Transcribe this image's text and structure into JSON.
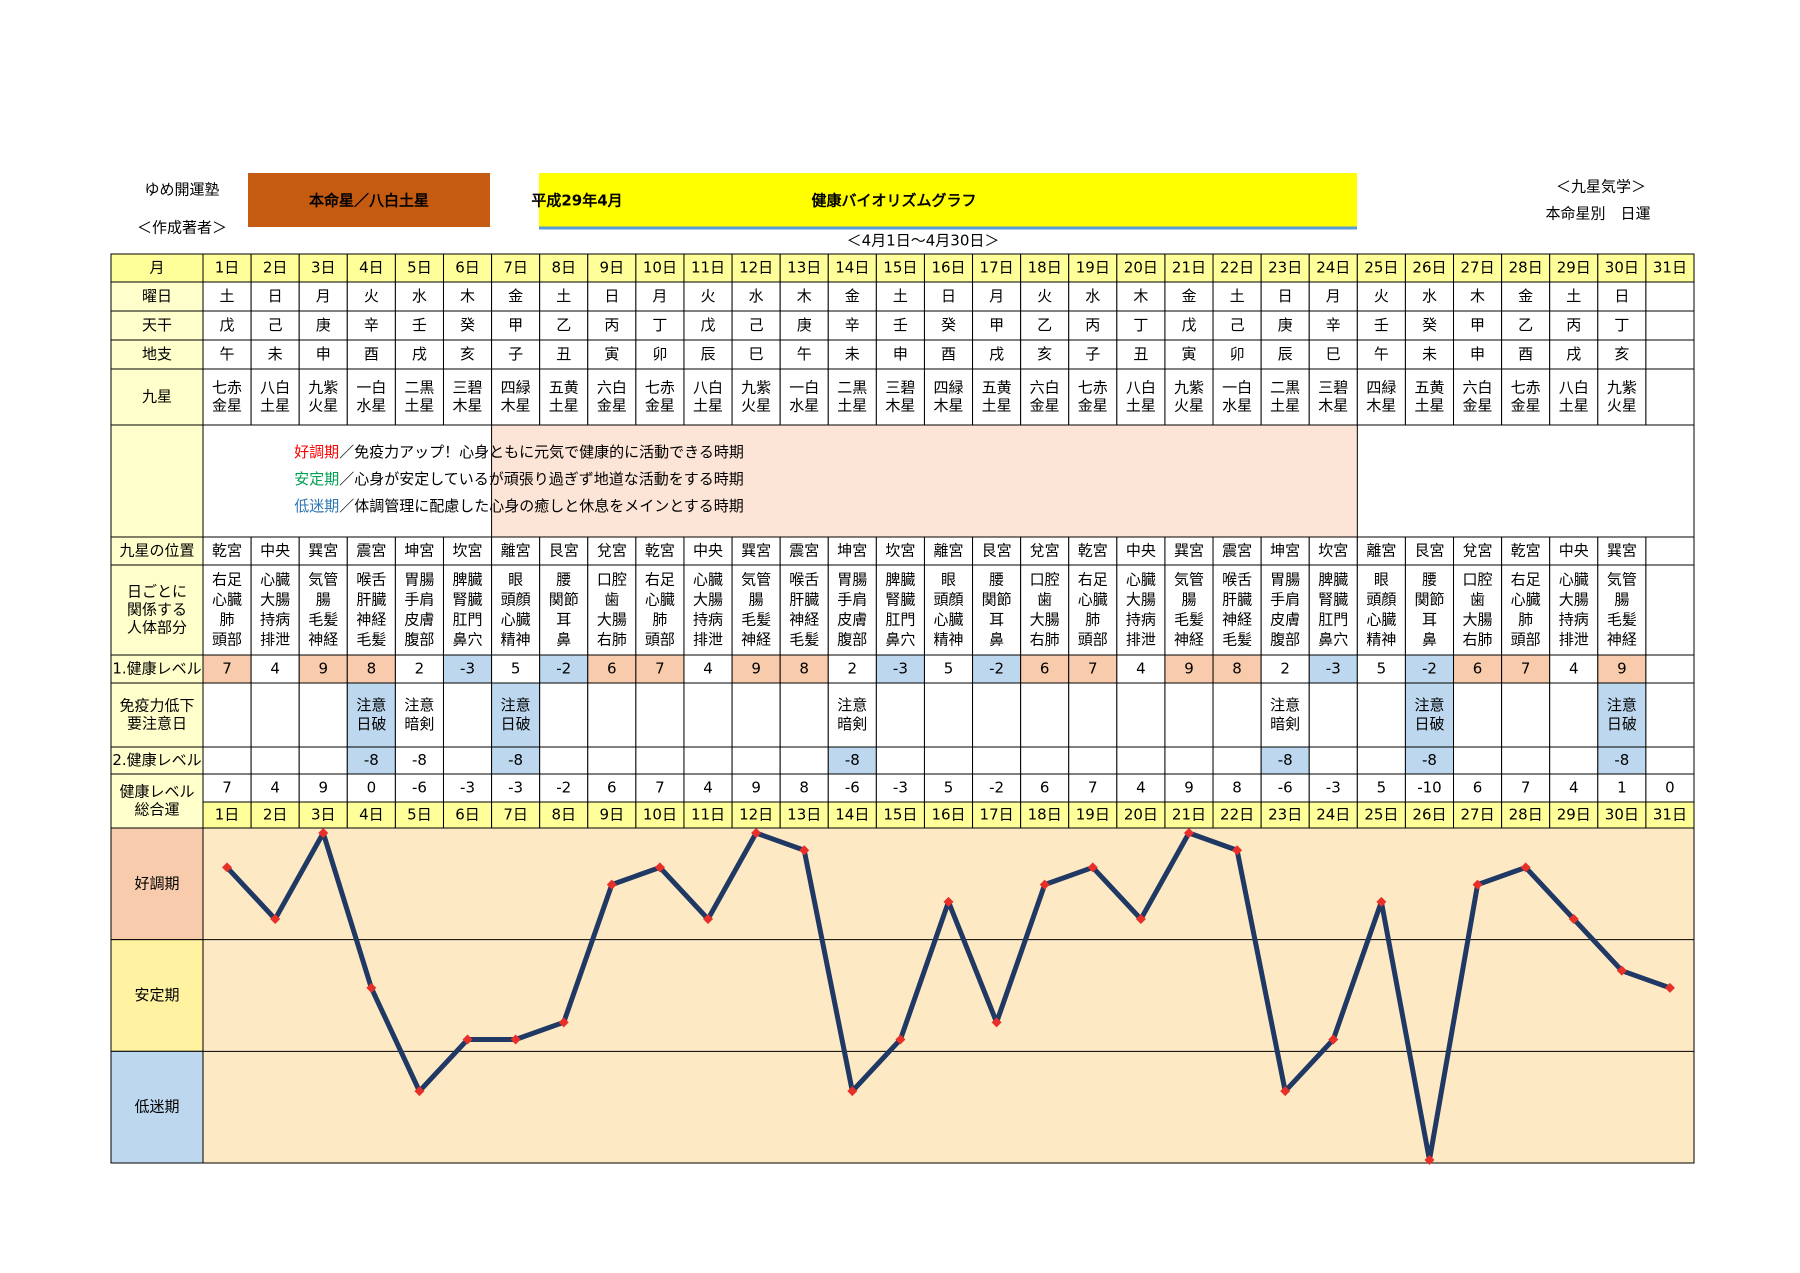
{
  "header": {
    "org": "ゆめ開運塾",
    "author": "＜作成著者＞",
    "honmei": "本命星／八白土星",
    "month": "平成29年4月",
    "title": "健康バイオリズムグラフ",
    "period": "＜4月1日～4月30日＞",
    "school": "＜九星気学＞",
    "subtitle": "本命星別　日運"
  },
  "table": {
    "labels": {
      "month": "月",
      "weekday": "曜日",
      "stem": "天干",
      "branch": "地支",
      "star": "九星",
      "position": "九星の位置",
      "body": [
        "日ごとに",
        "関係する",
        "人体部分"
      ],
      "health1": "1.健康レベル",
      "caution": [
        "免疫力低下",
        "要注意日"
      ],
      "health2": "2.健康レベル",
      "total": [
        "健康レベル",
        "総合運"
      ]
    },
    "days": [
      "1日",
      "2日",
      "3日",
      "4日",
      "5日",
      "6日",
      "7日",
      "8日",
      "9日",
      "10日",
      "11日",
      "12日",
      "13日",
      "14日",
      "15日",
      "16日",
      "17日",
      "18日",
      "19日",
      "20日",
      "21日",
      "22日",
      "23日",
      "24日",
      "25日",
      "26日",
      "27日",
      "28日",
      "29日",
      "30日",
      "31日"
    ],
    "weekdays": [
      "土",
      {
        "text": "日",
        "color": "#ff0000"
      },
      "月",
      "火",
      "水",
      "木",
      "金",
      "土",
      {
        "text": "日",
        "color": "#ff0000"
      },
      "月",
      "火",
      "水",
      "木",
      "金",
      "土",
      {
        "text": "日",
        "color": "#ff0000"
      },
      "月",
      "火",
      "水",
      "木",
      "金",
      "土",
      {
        "text": "日",
        "color": "#ff0000"
      },
      "月",
      "火",
      "水",
      "木",
      "金",
      "土",
      {
        "text": "日",
        "color": "#ff0000"
      }
    ],
    "stems": [
      "戊",
      "己",
      "庚",
      "辛",
      "壬",
      "癸",
      "甲",
      "乙",
      "丙",
      "丁",
      "戊",
      "己",
      "庚",
      "辛",
      "壬",
      "癸",
      "甲",
      "乙",
      "丙",
      "丁",
      "戊",
      "己",
      "庚",
      "辛",
      "壬",
      "癸",
      "甲",
      "乙",
      "丙",
      "丁"
    ],
    "branches": [
      "午",
      "未",
      "申",
      "酉",
      "戌",
      "亥",
      "子",
      "丑",
      "寅",
      "卯",
      "辰",
      "巳",
      "午",
      "未",
      "申",
      "酉",
      "戌",
      "亥",
      "子",
      "丑",
      "寅",
      "卯",
      "辰",
      "巳",
      "午",
      "未",
      "申",
      "酉",
      "戌",
      "亥"
    ],
    "stars": [
      [
        "七赤",
        "金星"
      ],
      [
        "八白",
        "土星"
      ],
      [
        "九紫",
        "火星"
      ],
      [
        "一白",
        "水星"
      ],
      [
        "二黒",
        "土星"
      ],
      [
        "三碧",
        "木星"
      ],
      [
        "四緑",
        "木星"
      ],
      [
        "五黄",
        "土星"
      ],
      [
        "六白",
        "金星"
      ],
      [
        "七赤",
        "金星"
      ],
      [
        "八白",
        "土星"
      ],
      [
        "九紫",
        "火星"
      ],
      [
        "一白",
        "水星"
      ],
      [
        "二黒",
        "土星"
      ],
      [
        "三碧",
        "木星"
      ],
      [
        "四緑",
        "木星"
      ],
      [
        "五黄",
        "土星"
      ],
      [
        "六白",
        "金星"
      ],
      [
        "七赤",
        "金星"
      ],
      [
        "八白",
        "土星"
      ],
      [
        "九紫",
        "火星"
      ],
      [
        "一白",
        "水星"
      ],
      [
        "二黒",
        "土星"
      ],
      [
        "三碧",
        "木星"
      ],
      [
        "四緑",
        "木星"
      ],
      [
        "五黄",
        "土星"
      ],
      [
        "六白",
        "金星"
      ],
      [
        "七赤",
        "金星"
      ],
      [
        "八白",
        "土星"
      ],
      [
        "九紫",
        "火星"
      ]
    ],
    "positions": [
      "乾宮",
      "中央",
      "巽宮",
      "震宮",
      "坤宮",
      "坎宮",
      "離宮",
      "艮宮",
      "兌宮",
      "乾宮",
      "中央",
      "巽宮",
      "震宮",
      "坤宮",
      "坎宮",
      "離宮",
      "艮宮",
      "兌宮",
      "乾宮",
      "中央",
      "巽宮",
      "震宮",
      "坤宮",
      "坎宮",
      "離宮",
      "艮宮",
      "兌宮",
      "乾宮",
      "中央",
      "巽宮"
    ],
    "position_color": "#ff0000",
    "body_parts": [
      [
        "右足",
        "心臓",
        "肺",
        "頭部"
      ],
      [
        "心臓",
        "大腸",
        "持病",
        "排泄"
      ],
      [
        "気管",
        "腸",
        "毛髪",
        "神経"
      ],
      [
        "喉舌",
        "肝臓",
        "神経",
        "毛髪"
      ],
      [
        "胃腸",
        "手肩",
        "皮膚",
        "腹部"
      ],
      [
        "脾臓",
        "腎臓",
        "肛門",
        "鼻穴"
      ],
      [
        "眼",
        "頭顔",
        "心臓",
        "精神"
      ],
      [
        "腰",
        "関節",
        "耳",
        "鼻"
      ],
      [
        "口腔",
        "歯",
        "大腸",
        "右肺"
      ],
      [
        "右足",
        "心臓",
        "肺",
        "頭部"
      ],
      [
        "心臓",
        "大腸",
        "持病",
        "排泄"
      ],
      [
        "気管",
        "腸",
        "毛髪",
        "神経"
      ],
      [
        "喉舌",
        "肝臓",
        "神経",
        "毛髪"
      ],
      [
        "胃腸",
        "手肩",
        "皮膚",
        "腹部"
      ],
      [
        "脾臓",
        "腎臓",
        "肛門",
        "鼻穴"
      ],
      [
        "眼",
        "頭顔",
        "心臓",
        "精神"
      ],
      [
        "腰",
        "関節",
        "耳",
        "鼻"
      ],
      [
        "口腔",
        "歯",
        "大腸",
        "右肺"
      ],
      [
        "右足",
        "心臓",
        "肺",
        "頭部"
      ],
      [
        "心臓",
        "大腸",
        "持病",
        "排泄"
      ],
      [
        "気管",
        "腸",
        "毛髪",
        "神経"
      ],
      [
        "喉舌",
        "肝臓",
        "神経",
        "毛髪"
      ],
      [
        "胃腸",
        "手肩",
        "皮膚",
        "腹部"
      ],
      [
        "脾臓",
        "腎臓",
        "肛門",
        "鼻穴"
      ],
      [
        "眼",
        "頭顔",
        "心臓",
        "精神"
      ],
      [
        "腰",
        "関節",
        "耳",
        "鼻"
      ],
      [
        "口腔",
        "歯",
        "大腸",
        "右肺"
      ],
      [
        "右足",
        "心臓",
        "肺",
        "頭部"
      ],
      [
        "心臓",
        "大腸",
        "持病",
        "排泄"
      ],
      [
        "気管",
        "腸",
        "毛髪",
        "神経"
      ]
    ],
    "health1": [
      7,
      4,
      9,
      8,
      2,
      -3,
      5,
      -2,
      6,
      7,
      4,
      9,
      8,
      2,
      -3,
      5,
      -2,
      6,
      7,
      4,
      9,
      8,
      2,
      -3,
      5,
      -2,
      6,
      7,
      4,
      9
    ],
    "health1_fills": [
      "#f8cbad",
      "#ffffff",
      "#f8cbad",
      "#f8cbad",
      "#ffffff",
      "#bdd7ee",
      "#ffffff",
      "#bdd7ee",
      "#f8cbad",
      "#f8cbad",
      "#ffffff",
      "#f8cbad",
      "#f8cbad",
      "#ffffff",
      "#bdd7ee",
      "#ffffff",
      "#bdd7ee",
      "#f8cbad",
      "#f8cbad",
      "#ffffff",
      "#f8cbad",
      "#f8cbad",
      "#ffffff",
      "#bdd7ee",
      "#ffffff",
      "#bdd7ee",
      "#f8cbad",
      "#f8cbad",
      "#ffffff",
      "#f8cbad"
    ],
    "cautions": [
      null,
      null,
      null,
      {
        "lines": [
          "注意",
          "日破"
        ],
        "level": -8,
        "color": "#ff0000",
        "fill": "#bdd7ee",
        "level_fill": "#bdd7ee"
      },
      {
        "lines": [
          "注意",
          "暗剣"
        ],
        "level": -8,
        "color": "#000000",
        "fill": "#ffffff",
        "level_fill": "#ffffff"
      },
      null,
      {
        "lines": [
          "注意",
          "日破"
        ],
        "level": -8,
        "color": "#ff0000",
        "fill": "#bdd7ee",
        "level_fill": "#bdd7ee"
      },
      null,
      null,
      null,
      null,
      null,
      null,
      {
        "lines": [
          "注意",
          "暗剣"
        ],
        "level": -8,
        "color": "#000000",
        "fill": "#ffffff",
        "level_fill": "#bdd7ee"
      },
      null,
      null,
      null,
      null,
      null,
      null,
      null,
      null,
      {
        "lines": [
          "注意",
          "暗剣"
        ],
        "level": -8,
        "color": "#000000",
        "fill": "#ffffff",
        "level_fill": "#bdd7ee"
      },
      null,
      null,
      {
        "lines": [
          "注意",
          "日破"
        ],
        "level": -8,
        "color": "#ff0000",
        "fill": "#bdd7ee",
        "level_fill": "#bdd7ee"
      },
      null,
      null,
      null,
      {
        "lines": [
          "注意",
          "日破"
        ],
        "level": -8,
        "color": "#ff0000",
        "fill": "#bdd7ee",
        "level_fill": "#bdd7ee"
      }
    ],
    "legend": [
      {
        "term": "好調期",
        "text": "／免疫力アップ！心身ともに元気で健康的に活動できる時期",
        "color": "#ff0000"
      },
      {
        "term": "安定期",
        "text": "／心身が安定しているが頑張り過ぎず地道な活動をする時期",
        "color": "#00a050"
      },
      {
        "term": "低迷期",
        "text": "／体調管理に配慮した心身の癒しと休息をメインとする時期",
        "color": "#2e75b6"
      }
    ]
  },
  "chart_data": {
    "type": "line",
    "categories": [
      "1日",
      "2日",
      "3日",
      "4日",
      "5日",
      "6日",
      "7日",
      "8日",
      "9日",
      "10日",
      "11日",
      "12日",
      "13日",
      "14日",
      "15日",
      "16日",
      "17日",
      "18日",
      "19日",
      "20日",
      "21日",
      "22日",
      "23日",
      "24日",
      "25日",
      "26日",
      "27日",
      "28日",
      "29日",
      "30日",
      "31日"
    ],
    "series": [
      {
        "color": "#1f3864",
        "marker_color": "#e8302a",
        "values": [
          7,
          4,
          9,
          0,
          -6,
          -3,
          -3,
          -2,
          6,
          7,
          4,
          9,
          8,
          -6,
          -3,
          5,
          -2,
          6,
          7,
          4,
          9,
          8,
          -6,
          -3,
          5,
          -10,
          6,
          7,
          4,
          1,
          0
        ]
      }
    ],
    "ylim": [
      -10,
      9
    ],
    "bands": [
      {
        "label": "好調期",
        "color": "#f8cbad"
      },
      {
        "label": "安定期",
        "color": "#fff2a0"
      },
      {
        "label": "低迷期",
        "color": "#bdd7ee"
      }
    ],
    "plot_color": "#fde9c4"
  }
}
